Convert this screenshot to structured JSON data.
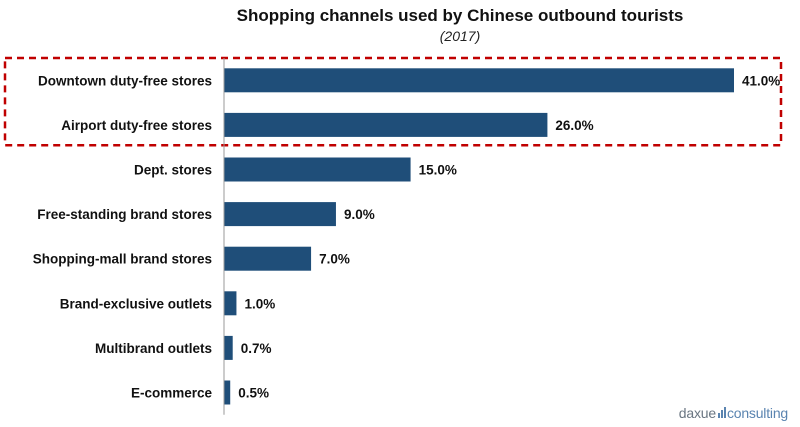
{
  "chart_data": {
    "type": "bar",
    "orientation": "horizontal",
    "title": "Shopping channels used by Chinese outbound tourists",
    "subtitle": "(2017)",
    "categories": [
      "Downtown duty-free stores",
      "Airport duty-free stores",
      "Dept. stores",
      "Free-standing brand stores",
      "Shopping-mall brand stores",
      "Brand-exclusive outlets",
      "Multibrand outlets",
      "E-commerce"
    ],
    "values": [
      41.0,
      26.0,
      15.0,
      9.0,
      7.0,
      1.0,
      0.7,
      0.5
    ],
    "value_labels": [
      "41.0%",
      "26.0%",
      "15.0%",
      "9.0%",
      "7.0%",
      "1.0%",
      "0.7%",
      "0.5%"
    ],
    "xlim": [
      0,
      41
    ],
    "grid": false,
    "bar_color": "#1f4e79",
    "highlight": {
      "categories": [
        "Downtown duty-free stores",
        "Airport duty-free stores"
      ],
      "color": "#c00000",
      "style": "dashed"
    }
  },
  "branding": {
    "logo_prefix": "daxue",
    "logo_suffix": "consulting"
  }
}
